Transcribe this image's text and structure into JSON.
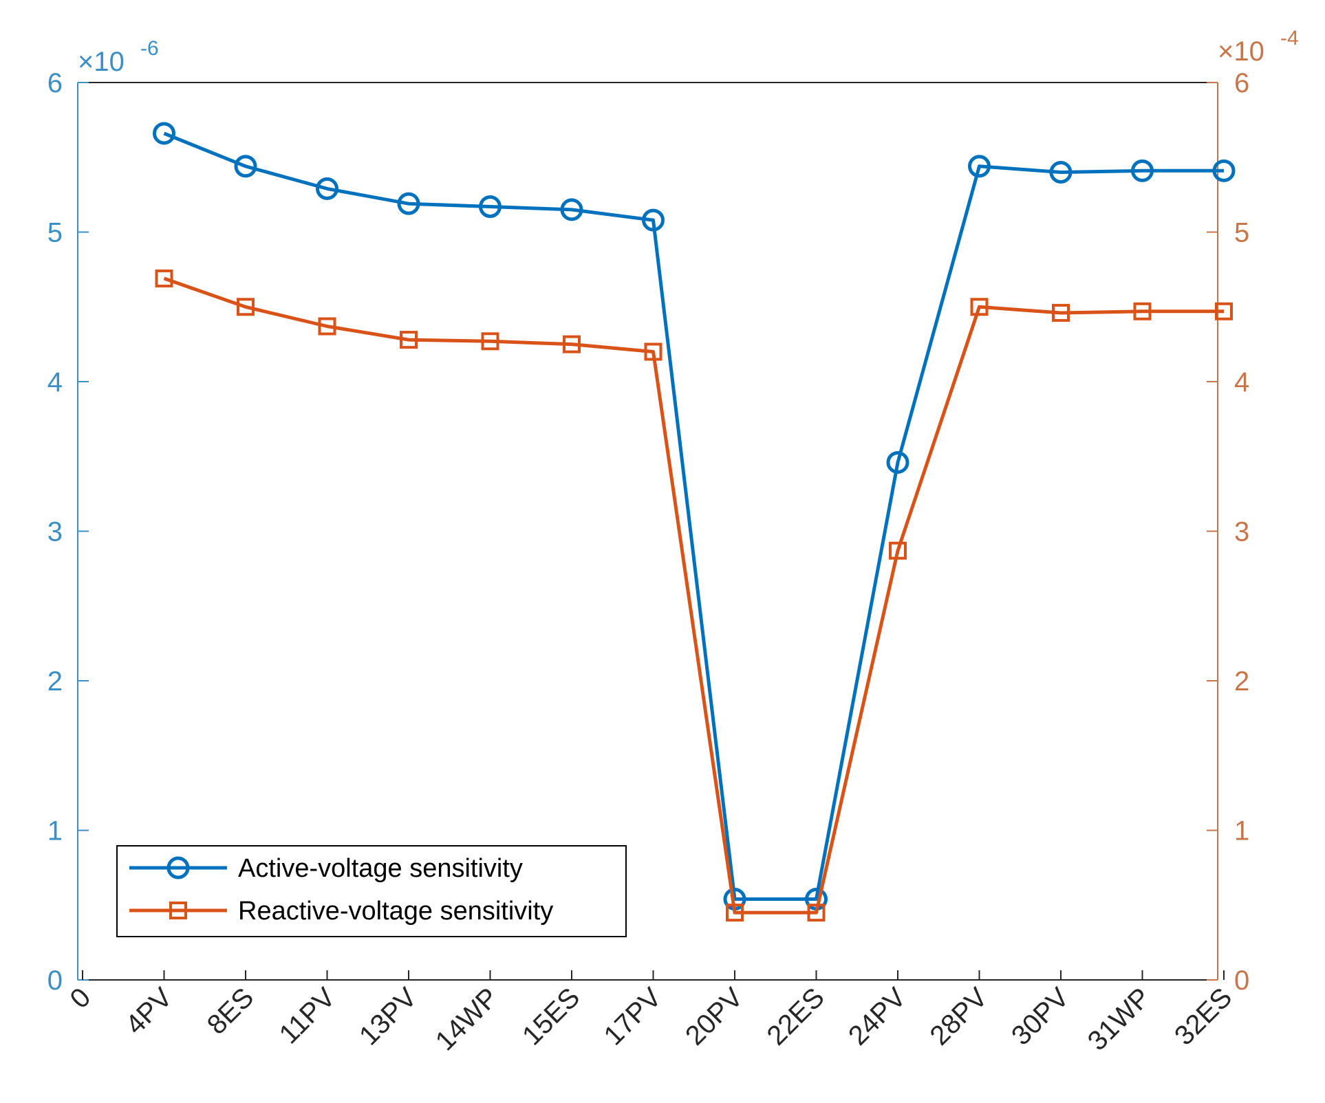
{
  "colors": {
    "left_axis": "#3b8fc4",
    "right_axis": "#c8754a",
    "series_active": "#0072bd",
    "series_reactive": "#d95319",
    "axis_box": "#262626"
  },
  "chart_data": {
    "type": "line",
    "title": "",
    "xlabel": "",
    "categories": [
      "0",
      "4PV",
      "8ES",
      "11PV",
      "13PV",
      "14WP",
      "15ES",
      "17PV",
      "20PV",
      "22ES",
      "24PV",
      "28PV",
      "30PV",
      "31WP",
      "32ES"
    ],
    "grid": false,
    "legend_position": "bottom-left",
    "y_left": {
      "label": "",
      "range": [
        0,
        6
      ],
      "ticks": [
        "0",
        "1",
        "2",
        "3",
        "4",
        "5",
        "6"
      ],
      "exponent_base": "×10",
      "exponent_power": "-6"
    },
    "y_right": {
      "label": "",
      "range": [
        0,
        6
      ],
      "ticks": [
        "0",
        "1",
        "2",
        "3",
        "4",
        "5",
        "6"
      ],
      "exponent_base": "×10",
      "exponent_power": "-4"
    },
    "series": [
      {
        "name": "Active-voltage sensitivity",
        "axis": "left",
        "marker": "circle",
        "color": "#0072bd",
        "values": [
          null,
          5.66,
          5.44,
          5.29,
          5.19,
          5.17,
          5.15,
          5.08,
          0.54,
          0.54,
          3.46,
          5.44,
          5.4,
          5.41,
          5.41
        ]
      },
      {
        "name": "Reactive-voltage sensitivity",
        "axis": "right",
        "marker": "square",
        "color": "#d95319",
        "values": [
          null,
          4.69,
          4.5,
          4.37,
          4.28,
          4.27,
          4.25,
          4.2,
          0.45,
          0.45,
          2.87,
          4.5,
          4.46,
          4.47,
          4.47
        ]
      }
    ]
  }
}
